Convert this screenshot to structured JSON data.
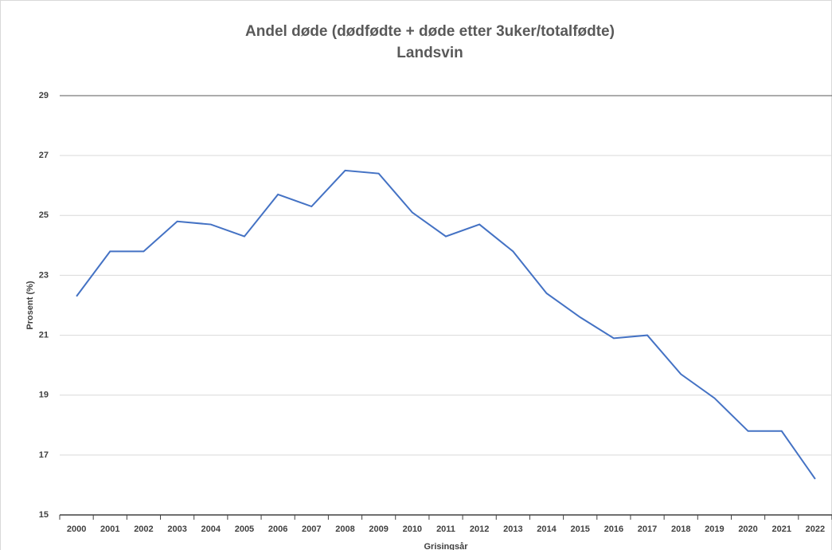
{
  "chart_data": {
    "type": "line",
    "title": "Andel døde (dødfødte + døde etter 3uker/totalfødte)",
    "subtitle": "Landsvin",
    "x_label": "Grisingsår",
    "y_label": "Prosent (%)",
    "categories": [
      "2000",
      "2001",
      "2002",
      "2003",
      "2004",
      "2005",
      "2006",
      "2007",
      "2008",
      "2009",
      "2010",
      "2011",
      "2012",
      "2013",
      "2014",
      "2015",
      "2016",
      "2017",
      "2018",
      "2019",
      "2020",
      "2021",
      "2022"
    ],
    "values": [
      22.3,
      23.8,
      23.8,
      24.8,
      24.7,
      24.3,
      25.7,
      25.3,
      26.5,
      26.4,
      25.1,
      24.3,
      24.7,
      23.8,
      22.4,
      21.6,
      20.9,
      21.0,
      19.7,
      18.9,
      17.8,
      17.8,
      16.2
    ],
    "color": "#4472c4",
    "ylim": [
      15,
      29
    ],
    "yticks": [
      15,
      17,
      19,
      21,
      23,
      25,
      27,
      29
    ],
    "grid": true
  }
}
